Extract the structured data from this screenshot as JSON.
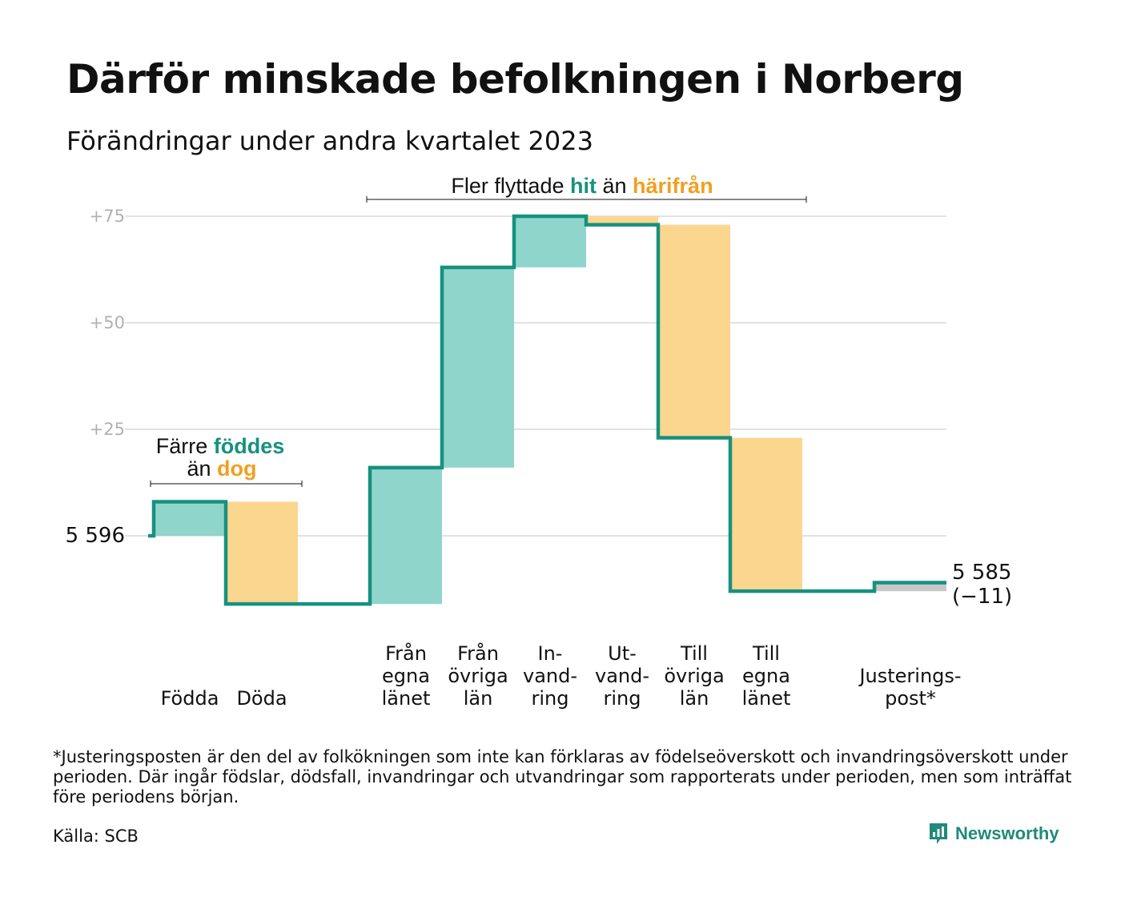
{
  "header": {
    "title": "Därför minskade befolkningen i Norberg",
    "subtitle": "Förändringar under andra kvartalet 2023"
  },
  "colors": {
    "increase": "#8fd5cb",
    "decrease": "#fbd68f",
    "adjust": "#c8c8c8",
    "line": "#16917f",
    "grid": "#e2e2e2",
    "accent_teal": "#16917f",
    "accent_orange": "#f19f22"
  },
  "chart_data": {
    "type": "bar",
    "subtype": "waterfall",
    "start_value": 5596,
    "start_label": "5  596",
    "end_label": "5 585",
    "end_change": "(−11)",
    "yticks": [
      {
        "value": 25,
        "label": "+25"
      },
      {
        "value": 50,
        "label": "+50"
      },
      {
        "value": 75,
        "label": "+75"
      }
    ],
    "ylim": [
      -20,
      75
    ],
    "grid": true,
    "steps": [
      {
        "label": "Födda",
        "label_lines": [
          "Födda"
        ],
        "change": 8,
        "kind": "increase"
      },
      {
        "label": "Döda",
        "label_lines": [
          "Döda"
        ],
        "change": -24,
        "kind": "decrease"
      },
      {
        "label": "",
        "label_lines": [],
        "change": 0,
        "kind": "gap"
      },
      {
        "label": "Från egna länet",
        "label_lines": [
          "Från",
          "egna",
          "länet"
        ],
        "change": 32,
        "kind": "increase"
      },
      {
        "label": "Från övriga län",
        "label_lines": [
          "Från",
          "övriga",
          "län"
        ],
        "change": 47,
        "kind": "increase"
      },
      {
        "label": "In-vand-ring",
        "label_lines": [
          "In-",
          "vand-",
          "ring"
        ],
        "change": 12,
        "kind": "increase"
      },
      {
        "label": "Ut-vand-ring",
        "label_lines": [
          "Ut-",
          "vand-",
          "ring"
        ],
        "change": -2,
        "kind": "decrease"
      },
      {
        "label": "Till övriga län",
        "label_lines": [
          "Till",
          "övriga",
          "län"
        ],
        "change": -50,
        "kind": "decrease"
      },
      {
        "label": "Till egna länet",
        "label_lines": [
          "Till",
          "egna",
          "länet"
        ],
        "change": -36,
        "kind": "decrease"
      },
      {
        "label": "",
        "label_lines": [],
        "change": 0,
        "kind": "gap"
      },
      {
        "label": "Justerings-post*",
        "label_lines": [
          "Justerings-",
          "post*"
        ],
        "change": 2,
        "kind": "adjust"
      }
    ],
    "annotations": {
      "births": {
        "line1_plain": "Färre ",
        "line1_teal": "föddes",
        "line2_plain": "än ",
        "line2_orange": "dog"
      },
      "migration": {
        "plain1": "Fler flyttade ",
        "teal": "hit",
        "plain2": " än ",
        "orange": "härifrån"
      }
    }
  },
  "footnote": "*Justeringsposten är den del av folkökningen som inte kan förklaras av födelseöverskott och invandringsöverskott under perioden. Där ingår födslar, dödsfall, invandringar och utvandringar som rapporterats under perioden, men som inträffat före periodens början.",
  "source": "Källa: SCB",
  "brand": {
    "name": "Newsworthy",
    "icon": "newsworthy-logo-icon"
  }
}
